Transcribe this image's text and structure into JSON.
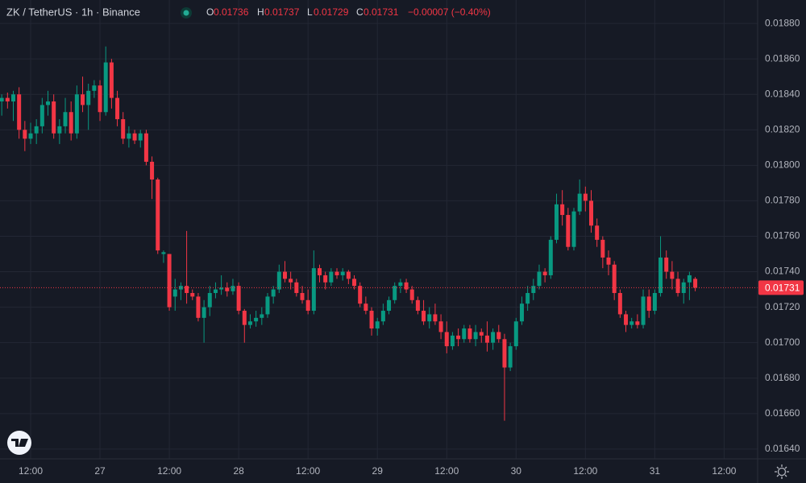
{
  "header": {
    "symbol": "ZK / TetherUS · 1h · Binance",
    "open_label": "O",
    "high_label": "H",
    "low_label": "L",
    "close_label": "C",
    "change": "−0.00007 (−0.40%)"
  },
  "chart_data": {
    "type": "candlestick",
    "up_color": "#089981",
    "down_color": "#f23645",
    "grid": true,
    "x": [
      "26 07:00",
      "26 08:00",
      "26 09:00",
      "26 10:00",
      "26 11:00",
      "26 12:00",
      "26 13:00",
      "26 14:00",
      "26 15:00",
      "26 16:00",
      "26 17:00",
      "26 18:00",
      "26 19:00",
      "26 20:00",
      "26 21:00",
      "26 22:00",
      "26 23:00",
      "27 00:00",
      "27 01:00",
      "27 02:00",
      "27 03:00",
      "27 04:00",
      "27 05:00",
      "27 06:00",
      "27 07:00",
      "27 08:00",
      "27 09:00",
      "27 10:00",
      "27 11:00",
      "27 12:00",
      "27 13:00",
      "27 14:00",
      "27 15:00",
      "27 16:00",
      "27 17:00",
      "27 18:00",
      "27 19:00",
      "27 20:00",
      "27 21:00",
      "27 22:00",
      "27 23:00",
      "28 00:00",
      "28 01:00",
      "28 02:00",
      "28 03:00",
      "28 04:00",
      "28 05:00",
      "28 06:00",
      "28 07:00",
      "28 08:00",
      "28 09:00",
      "28 10:00",
      "28 11:00",
      "28 12:00",
      "28 13:00",
      "28 14:00",
      "28 15:00",
      "28 16:00",
      "28 17:00",
      "28 18:00",
      "28 19:00",
      "28 20:00",
      "28 21:00",
      "28 22:00",
      "28 23:00",
      "29 00:00",
      "29 01:00",
      "29 02:00",
      "29 03:00",
      "29 04:00",
      "29 05:00",
      "29 06:00",
      "29 07:00",
      "29 08:00",
      "29 09:00",
      "29 10:00",
      "29 11:00",
      "29 12:00",
      "29 13:00",
      "29 14:00",
      "29 15:00",
      "29 16:00",
      "29 17:00",
      "29 18:00",
      "29 19:00",
      "29 20:00",
      "29 21:00",
      "29 22:00",
      "29 23:00",
      "30 00:00",
      "30 01:00",
      "30 02:00",
      "30 03:00",
      "30 04:00",
      "30 05:00",
      "30 06:00",
      "30 07:00",
      "30 08:00",
      "30 09:00",
      "30 10:00",
      "30 11:00",
      "30 12:00",
      "30 13:00",
      "30 14:00",
      "30 15:00",
      "30 16:00",
      "30 17:00",
      "30 18:00",
      "30 19:00",
      "30 20:00",
      "30 21:00",
      "30 22:00",
      "30 23:00",
      "31 00:00",
      "31 01:00",
      "31 02:00",
      "31 03:00",
      "31 04:00",
      "31 05:00",
      "31 06:00",
      "31 07:00"
    ],
    "values": [
      [
        0.01836,
        0.0184,
        0.01828,
        0.01838
      ],
      [
        0.01838,
        0.01841,
        0.01832,
        0.01836
      ],
      [
        0.01836,
        0.01842,
        0.01825,
        0.0184
      ],
      [
        0.0184,
        0.01844,
        0.01815,
        0.0182
      ],
      [
        0.0182,
        0.01825,
        0.01808,
        0.01815
      ],
      [
        0.01815,
        0.01824,
        0.01812,
        0.01818
      ],
      [
        0.01818,
        0.01826,
        0.01812,
        0.01822
      ],
      [
        0.01822,
        0.01838,
        0.01818,
        0.01834
      ],
      [
        0.01834,
        0.01842,
        0.01828,
        0.01836
      ],
      [
        0.01836,
        0.0184,
        0.01815,
        0.01818
      ],
      [
        0.01818,
        0.01826,
        0.01812,
        0.01822
      ],
      [
        0.01822,
        0.01838,
        0.01818,
        0.0183
      ],
      [
        0.0183,
        0.01836,
        0.01814,
        0.01818
      ],
      [
        0.01818,
        0.01845,
        0.01815,
        0.0184
      ],
      [
        0.0184,
        0.0185,
        0.0183,
        0.01834
      ],
      [
        0.01834,
        0.01846,
        0.0182,
        0.01842
      ],
      [
        0.01842,
        0.01848,
        0.01838,
        0.01845
      ],
      [
        0.01845,
        0.01848,
        0.01825,
        0.0183
      ],
      [
        0.0183,
        0.01867,
        0.01828,
        0.01858
      ],
      [
        0.01858,
        0.0186,
        0.01832,
        0.01838
      ],
      [
        0.01838,
        0.01842,
        0.01822,
        0.01826
      ],
      [
        0.01826,
        0.0183,
        0.01812,
        0.01815
      ],
      [
        0.01815,
        0.01822,
        0.0181,
        0.01818
      ],
      [
        0.01818,
        0.0182,
        0.01812,
        0.01814
      ],
      [
        0.01814,
        0.0182,
        0.0181,
        0.01818
      ],
      [
        0.01818,
        0.0182,
        0.018,
        0.01802
      ],
      [
        0.01802,
        0.01805,
        0.01781,
        0.01792
      ],
      [
        0.01792,
        0.01793,
        0.0175,
        0.01752
      ],
      [
        0.0175,
        0.01752,
        0.01745,
        0.01751
      ],
      [
        0.0175,
        0.0175,
        0.01718,
        0.0172
      ],
      [
        0.01726,
        0.01736,
        0.01718,
        0.0173
      ],
      [
        0.0173,
        0.01734,
        0.01724,
        0.01732
      ],
      [
        0.01732,
        0.01763,
        0.01722,
        0.01728
      ],
      [
        0.01728,
        0.0173,
        0.01724,
        0.01726
      ],
      [
        0.01726,
        0.01728,
        0.01712,
        0.01714
      ],
      [
        0.01714,
        0.01724,
        0.017,
        0.0172
      ],
      [
        0.0172,
        0.01732,
        0.01715,
        0.01728
      ],
      [
        0.01728,
        0.01734,
        0.01725,
        0.0173
      ],
      [
        0.0173,
        0.01738,
        0.01727,
        0.01731
      ],
      [
        0.01731,
        0.01734,
        0.01726,
        0.01729
      ],
      [
        0.01729,
        0.01736,
        0.01727,
        0.01732
      ],
      [
        0.01732,
        0.01734,
        0.01716,
        0.01718
      ],
      [
        0.01718,
        0.01719,
        0.017,
        0.0171
      ],
      [
        0.0171,
        0.01716,
        0.01708,
        0.01712
      ],
      [
        0.01712,
        0.01718,
        0.01709,
        0.01714
      ],
      [
        0.01714,
        0.0172,
        0.0171,
        0.01716
      ],
      [
        0.01716,
        0.01728,
        0.01714,
        0.01726
      ],
      [
        0.01726,
        0.01732,
        0.01722,
        0.0173
      ],
      [
        0.0173,
        0.01744,
        0.01728,
        0.0174
      ],
      [
        0.0174,
        0.01746,
        0.01734,
        0.01736
      ],
      [
        0.01736,
        0.0174,
        0.0173,
        0.01734
      ],
      [
        0.01734,
        0.01736,
        0.01726,
        0.01728
      ],
      [
        0.01728,
        0.01732,
        0.01722,
        0.01724
      ],
      [
        0.01724,
        0.0173,
        0.01716,
        0.01718
      ],
      [
        0.01718,
        0.01752,
        0.01716,
        0.01742
      ],
      [
        0.01742,
        0.01744,
        0.01734,
        0.01738
      ],
      [
        0.01738,
        0.0174,
        0.0173,
        0.01734
      ],
      [
        0.01734,
        0.01742,
        0.01732,
        0.0174
      ],
      [
        0.0174,
        0.01742,
        0.01736,
        0.01738
      ],
      [
        0.01738,
        0.01742,
        0.01735,
        0.0174
      ],
      [
        0.0174,
        0.01741,
        0.01733,
        0.01736
      ],
      [
        0.01736,
        0.01738,
        0.0173,
        0.01732
      ],
      [
        0.01732,
        0.01734,
        0.0172,
        0.01722
      ],
      [
        0.01722,
        0.01726,
        0.01716,
        0.01718
      ],
      [
        0.01718,
        0.0172,
        0.01704,
        0.01708
      ],
      [
        0.01708,
        0.01714,
        0.01704,
        0.01712
      ],
      [
        0.01712,
        0.01722,
        0.0171,
        0.01718
      ],
      [
        0.01718,
        0.01726,
        0.01716,
        0.01724
      ],
      [
        0.01724,
        0.01734,
        0.01722,
        0.01732
      ],
      [
        0.01732,
        0.01736,
        0.01728,
        0.01734
      ],
      [
        0.01734,
        0.01736,
        0.01728,
        0.0173
      ],
      [
        0.0173,
        0.01732,
        0.01722,
        0.01724
      ],
      [
        0.01724,
        0.01726,
        0.01716,
        0.01718
      ],
      [
        0.01718,
        0.01724,
        0.0171,
        0.01712
      ],
      [
        0.01712,
        0.0172,
        0.01708,
        0.01716
      ],
      [
        0.01716,
        0.01722,
        0.0171,
        0.01712
      ],
      [
        0.01712,
        0.01716,
        0.01702,
        0.01706
      ],
      [
        0.01706,
        0.01712,
        0.01694,
        0.01698
      ],
      [
        0.01698,
        0.01706,
        0.01696,
        0.01704
      ],
      [
        0.01704,
        0.01708,
        0.01698,
        0.01702
      ],
      [
        0.01702,
        0.0171,
        0.017,
        0.01708
      ],
      [
        0.01708,
        0.0171,
        0.017,
        0.01702
      ],
      [
        0.01702,
        0.0171,
        0.01698,
        0.01706
      ],
      [
        0.01706,
        0.01708,
        0.017,
        0.01704
      ],
      [
        0.01704,
        0.01712,
        0.01695,
        0.017
      ],
      [
        0.017,
        0.01708,
        0.01696,
        0.01706
      ],
      [
        0.01706,
        0.0171,
        0.017,
        0.01702
      ],
      [
        0.01702,
        0.01705,
        0.01656,
        0.01686
      ],
      [
        0.01686,
        0.017,
        0.01684,
        0.01698
      ],
      [
        0.01698,
        0.01714,
        0.01696,
        0.01712
      ],
      [
        0.01712,
        0.01726,
        0.0171,
        0.01722
      ],
      [
        0.01722,
        0.01732,
        0.01718,
        0.01728
      ],
      [
        0.01728,
        0.01736,
        0.01724,
        0.01732
      ],
      [
        0.01732,
        0.01744,
        0.0173,
        0.0174
      ],
      [
        0.0174,
        0.01742,
        0.01734,
        0.01738
      ],
      [
        0.01738,
        0.0176,
        0.01736,
        0.01758
      ],
      [
        0.01758,
        0.01784,
        0.01756,
        0.01778
      ],
      [
        0.01778,
        0.01786,
        0.01766,
        0.01772
      ],
      [
        0.01772,
        0.01776,
        0.01752,
        0.01754
      ],
      [
        0.01754,
        0.01776,
        0.01752,
        0.01774
      ],
      [
        0.01774,
        0.01792,
        0.01772,
        0.01784
      ],
      [
        0.01784,
        0.01788,
        0.01774,
        0.0178
      ],
      [
        0.0178,
        0.01786,
        0.01762,
        0.01766
      ],
      [
        0.01766,
        0.0177,
        0.01754,
        0.01758
      ],
      [
        0.01758,
        0.0176,
        0.01742,
        0.01748
      ],
      [
        0.01748,
        0.01752,
        0.01738,
        0.01744
      ],
      [
        0.01744,
        0.01746,
        0.01724,
        0.01728
      ],
      [
        0.01728,
        0.0173,
        0.01714,
        0.01716
      ],
      [
        0.01716,
        0.01718,
        0.01706,
        0.0171
      ],
      [
        0.0171,
        0.01714,
        0.01708,
        0.01712
      ],
      [
        0.01712,
        0.01716,
        0.01708,
        0.0171
      ],
      [
        0.0171,
        0.0173,
        0.01708,
        0.01726
      ],
      [
        0.01726,
        0.0173,
        0.01714,
        0.01718
      ],
      [
        0.01718,
        0.0173,
        0.01716,
        0.01728
      ],
      [
        0.01728,
        0.0176,
        0.01726,
        0.01748
      ],
      [
        0.01748,
        0.01752,
        0.01736,
        0.0174
      ],
      [
        0.0174,
        0.01746,
        0.0173,
        0.01736
      ],
      [
        0.01736,
        0.0174,
        0.01726,
        0.01728
      ],
      [
        0.01728,
        0.01736,
        0.01722,
        0.01734
      ],
      [
        0.01734,
        0.0174,
        0.01724,
        0.01738
      ],
      [
        0.01736,
        0.01737,
        0.01729,
        0.01731
      ]
    ],
    "xlim": [
      "26 06:42",
      "31 17:48"
    ],
    "xticks": [
      {
        "value": "26 12:00",
        "label": "12:00"
      },
      {
        "value": "27 00:00",
        "label": "27"
      },
      {
        "value": "27 12:00",
        "label": "12:00"
      },
      {
        "value": "28 00:00",
        "label": "28"
      },
      {
        "value": "28 12:00",
        "label": "12:00"
      },
      {
        "value": "29 00:00",
        "label": "29"
      },
      {
        "value": "29 12:00",
        "label": "12:00"
      },
      {
        "value": "30 00:00",
        "label": "30"
      },
      {
        "value": "30 12:00",
        "label": "12:00"
      },
      {
        "value": "31 00:00",
        "label": "31"
      },
      {
        "value": "31 12:00",
        "label": "12:00"
      }
    ],
    "ylim": [
      0.016345,
      0.018932
    ],
    "yticks": [
      {
        "value": 0.0164,
        "label": "0.01640"
      },
      {
        "value": 0.0166,
        "label": "0.01660"
      },
      {
        "value": 0.0168,
        "label": "0.01680"
      },
      {
        "value": 0.017,
        "label": "0.01700"
      },
      {
        "value": 0.0172,
        "label": "0.01720"
      },
      {
        "value": 0.0174,
        "label": "0.01740"
      },
      {
        "value": 0.0176,
        "label": "0.01760"
      },
      {
        "value": 0.0178,
        "label": "0.01780"
      },
      {
        "value": 0.018,
        "label": "0.01800"
      },
      {
        "value": 0.0182,
        "label": "0.01820"
      },
      {
        "value": 0.0184,
        "label": "0.01840"
      },
      {
        "value": 0.0186,
        "label": "0.01860"
      },
      {
        "value": 0.0188,
        "label": "0.01880"
      }
    ]
  }
}
